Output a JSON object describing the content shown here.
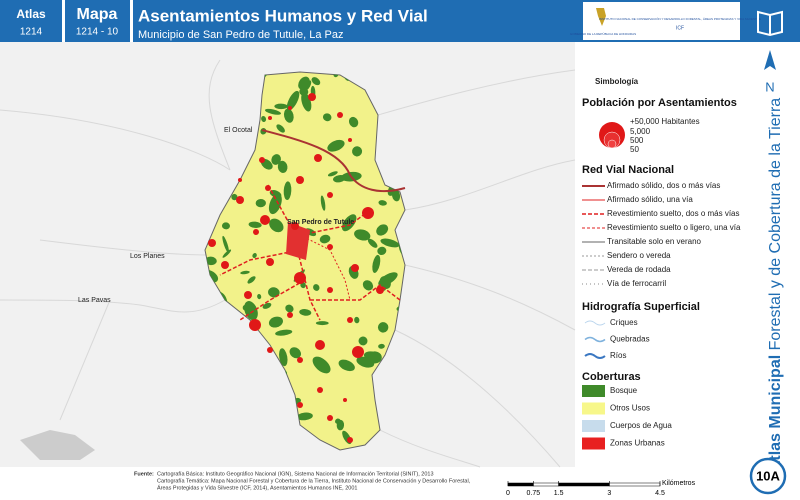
{
  "header": {
    "atlas_label": "Atlas",
    "atlas_code": "1214",
    "map_label": "Mapa",
    "map_code": "1214 - 10",
    "title": "Asentamientos Humanos y Red Vial",
    "subtitle": "Municipio de San Pedro de Tutule, La Paz",
    "logo_left": "GOBIERNO DE LA REPÚBLICA DE HONDURAS",
    "logo_right": "INSTITUTO NACIONAL DE CONSERVACIÓN Y DESARROLLO FORESTAL, ÁREAS PROTEGIDAS Y VIDA SILVESTRE",
    "logo_right_abbr": "ICF"
  },
  "map": {
    "places": [
      "El Ocotal",
      "Los Planes",
      "Las Pavas",
      "San Pedro de Tutule"
    ]
  },
  "legend": {
    "title": "Simbología",
    "population": {
      "title": "Población por Asentamientos",
      "items": [
        "+50,000 Habitantes",
        "5,000",
        "500",
        "50"
      ]
    },
    "roads": {
      "title": "Red Vial Nacional",
      "items": [
        "Afirmado sólido, dos o más vías",
        "Afirmado sólido, una vía",
        "Revestimiento suelto, dos o más vías",
        "Revestimiento suelto o ligero, una vía",
        "Transitable solo en verano",
        "Sendero o vereda",
        "Vereda de rodada",
        "Vía de ferrocarril"
      ]
    },
    "hydro": {
      "title": "Hidrografía Superficial",
      "items": [
        "Criques",
        "Quebradas",
        "Ríos"
      ]
    },
    "cover": {
      "title": "Coberturas",
      "items": [
        "Bosque",
        "Otros Usos",
        "Cuerpos de Agua",
        "Zonas Urbanas"
      ]
    }
  },
  "side": {
    "north": "N",
    "title_bold": "Atlas Municipal",
    "title_rest": "Forestal y de Cobertura de la Tierra",
    "sheet": "10A"
  },
  "footer": {
    "source_label": "Fuente:",
    "source_lines": [
      "Cartografía Básica: Instituto Geográfico Nacional (IGN), Sistema Nacional de Información Territorial (SINIT), 2013",
      "Cartografía Temática: Mapa Nacional Forestal y Cobertura de la Tierra, Instituto Nacional de Conservación y Desarrollo Forestal,",
      "Áreas Protegidas y Vida Silvestre (ICF, 2014), Asentamientos Humanos INE, 2001"
    ],
    "scale": {
      "ticks": [
        0,
        0.75,
        1.5,
        3,
        4.5
      ],
      "unit": "Kilómetros"
    }
  }
}
